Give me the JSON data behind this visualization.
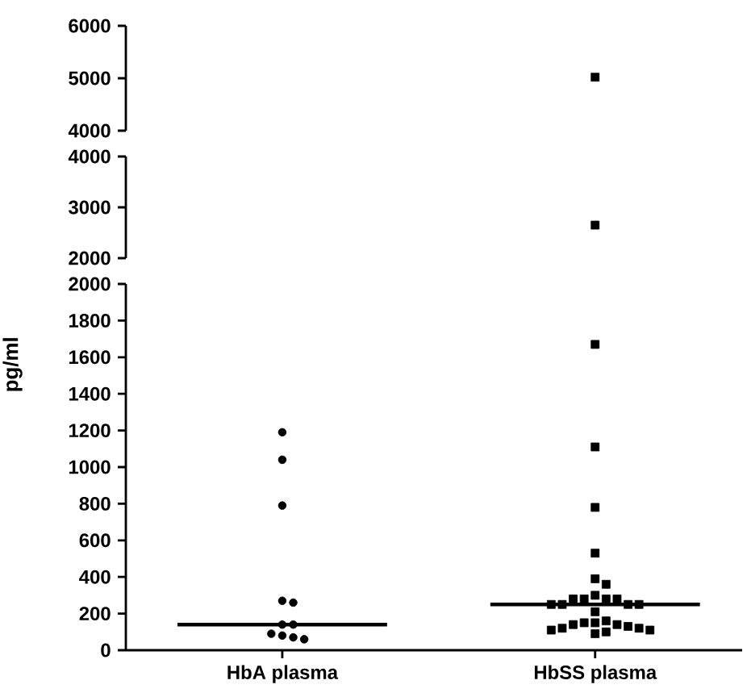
{
  "chart_data": [
    {
      "type": "scatter",
      "categories": [
        "HbA plasma",
        "HbSS plasma"
      ],
      "ylim": [
        4000,
        6000
      ],
      "yticks": [
        4000,
        5000,
        6000
      ],
      "tick_labels": "y",
      "series": [
        {
          "x": [
            "HbSS plasma"
          ],
          "values": [
            5020
          ],
          "color": "#000000",
          "marker": "square"
        }
      ]
    },
    {
      "type": "scatter",
      "categories": [
        "HbA plasma",
        "HbSS plasma"
      ],
      "ylim": [
        2000,
        4000
      ],
      "yticks": [
        2000,
        3000,
        4000
      ],
      "tick_labels": "y",
      "series": [
        {
          "x": [
            "HbSS plasma"
          ],
          "values": [
            2650
          ],
          "color": "#000000",
          "marker": "square"
        }
      ]
    },
    {
      "type": "scatter",
      "categories": [
        "HbA plasma",
        "HbSS plasma"
      ],
      "ylabel": "pg/ml",
      "ylim": [
        0,
        2000
      ],
      "yticks": [
        0,
        200,
        400,
        600,
        800,
        1000,
        1200,
        1400,
        1600,
        1800,
        2000
      ],
      "series": [
        {
          "x": [
            "HbA plasma",
            "HbA plasma",
            "HbA plasma",
            "HbA plasma",
            "HbA plasma",
            "HbA plasma",
            "HbA plasma",
            "HbA plasma",
            "HbA plasma",
            "HbA plasma",
            "HbA plasma"
          ],
          "values": [
            1190,
            1040,
            790,
            270,
            260,
            140,
            140,
            90,
            80,
            70,
            60
          ],
          "color": "#000000",
          "marker": "circle"
        },
        {
          "x": [
            "HbSS plasma",
            "HbSS plasma",
            "HbSS plasma",
            "HbSS plasma",
            "HbSS plasma",
            "HbSS plasma",
            "HbSS plasma",
            "HbSS plasma",
            "HbSS plasma",
            "HbSS plasma",
            "HbSS plasma",
            "HbSS plasma",
            "HbSS plasma",
            "HbSS plasma",
            "HbSS plasma",
            "HbSS plasma",
            "HbSS plasma",
            "HbSS plasma",
            "HbSS plasma",
            "HbSS plasma",
            "HbSS plasma",
            "HbSS plasma",
            "HbSS plasma",
            "HbSS plasma",
            "HbSS plasma",
            "HbSS plasma",
            "HbSS plasma",
            "HbSS plasma"
          ],
          "values": [
            1670,
            1110,
            780,
            530,
            390,
            360,
            300,
            280,
            280,
            280,
            280,
            250,
            250,
            250,
            250,
            210,
            160,
            150,
            150,
            140,
            140,
            130,
            120,
            120,
            110,
            110,
            100,
            90
          ],
          "color": "#000000",
          "marker": "square"
        }
      ],
      "ref_lines": [
        {
          "axis": "y",
          "value": 140,
          "color": "#000000"
        },
        {
          "axis": "y",
          "value": 250,
          "color": "#000000"
        }
      ]
    }
  ]
}
